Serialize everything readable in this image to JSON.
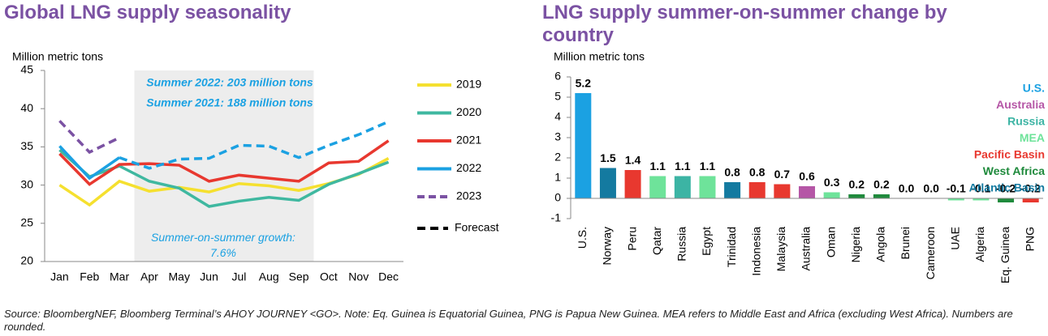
{
  "charts": [
    {
      "type": "line",
      "title": "Global LNG supply seasonality",
      "y_label": "Million metric tons",
      "categories": [
        "Jan",
        "Feb",
        "Mar",
        "Apr",
        "May",
        "Jun",
        "Jul",
        "Aug",
        "Sep",
        "Oct",
        "Nov",
        "Dec"
      ],
      "ylim": [
        20,
        45
      ],
      "yticks": [
        20,
        25,
        30,
        35,
        40,
        45
      ],
      "shade": [
        "Apr",
        "Sep"
      ],
      "annotations": [
        "Summer 2022: 203 million tons",
        "Summer 2021: 188 million tons",
        "Summer-on-summer growth: 7.6%"
      ],
      "forecast_label": "Forecast",
      "series": [
        {
          "name": "2019",
          "color": "#f5e02f",
          "values": [
            30.0,
            27.4,
            30.5,
            29.2,
            29.7,
            29.1,
            30.2,
            29.9,
            29.3,
            30.2,
            31.4,
            33.5
          ]
        },
        {
          "name": "2020",
          "color": "#3fb8a0",
          "values": [
            34.6,
            31.1,
            32.5,
            30.5,
            29.6,
            27.2,
            27.9,
            28.4,
            28.0,
            30.1,
            31.5,
            33.0
          ]
        },
        {
          "name": "2021",
          "color": "#e8382f",
          "values": [
            34.1,
            30.1,
            32.7,
            32.8,
            32.6,
            30.5,
            31.3,
            30.9,
            30.5,
            32.9,
            33.1,
            35.8
          ]
        },
        {
          "name": "2022",
          "color": "#1ba1e2",
          "forecast_from": "Mar",
          "values": [
            35.1,
            30.9,
            33.6,
            32.2,
            33.4,
            33.5,
            35.2,
            35.1,
            33.6,
            35.2,
            36.6,
            38.3
          ]
        },
        {
          "name": "2023",
          "color": "#7b52a3",
          "line_style": "dashed",
          "values": [
            38.4,
            34.3,
            36.2,
            null,
            null,
            null,
            null,
            null,
            null,
            null,
            null,
            null
          ]
        }
      ]
    },
    {
      "type": "bar",
      "title": "LNG supply summer-on-summer change by country",
      "y_label": "Million metric tons",
      "categories": [
        "U.S.",
        "Norway",
        "Peru",
        "Qatar",
        "Russia",
        "Egypt",
        "Trinidad",
        "Indonesia",
        "Malaysia",
        "Australia",
        "Oman",
        "Nigeria",
        "Angola",
        "Brunei",
        "Cameroon",
        "UAE",
        "Algeria",
        "Eq. Guinea",
        "PNG"
      ],
      "values": [
        5.2,
        1.5,
        1.4,
        1.1,
        1.1,
        1.1,
        0.8,
        0.8,
        0.7,
        0.6,
        0.3,
        0.2,
        0.2,
        0.0,
        0.0,
        -0.1,
        -0.1,
        -0.2,
        -0.2
      ],
      "value_labels": [
        "5.2",
        "1.5",
        "1.4",
        "1.1",
        "1.1",
        "1.1",
        "0.8",
        "0.8",
        "0.7",
        "0.6",
        "0.3",
        "0.2",
        "0.2",
        "0.0",
        "0.0",
        "-0.1",
        "-0.1",
        "-0.2",
        "-0.2"
      ],
      "bar_colors": [
        "#1ba1e2",
        "#147aa0",
        "#e8382f",
        "#6ee39a",
        "#3cb4a4",
        "#6ee39a",
        "#147aa0",
        "#e8382f",
        "#e8382f",
        "#b556a6",
        "#6ee39a",
        "#1f8a3c",
        "#1f8a3c",
        "#e8382f",
        "#1f8a3c",
        "#6ee39a",
        "#6ee39a",
        "#1f8a3c",
        "#e8382f"
      ],
      "ylim": [
        -1,
        6
      ],
      "yticks": [
        -1,
        0,
        1,
        2,
        3,
        4,
        5,
        6
      ],
      "legend": [
        {
          "name": "U.S.",
          "color": "#1ba1e2"
        },
        {
          "name": "Australia",
          "color": "#b556a6"
        },
        {
          "name": "Russia",
          "color": "#3cb4a4"
        },
        {
          "name": "MEA",
          "color": "#6ee39a"
        },
        {
          "name": "Pacific Basin",
          "color": "#e8382f"
        },
        {
          "name": "West Africa",
          "color": "#1f8a3c"
        },
        {
          "name": "Atlantic Basin",
          "color": "#147aa0"
        }
      ]
    }
  ],
  "source": "Source: BloombergNEF, Bloomberg Terminal’s AHOY JOURNEY <GO>. Note: Eq. Guinea is Equatorial Guinea, PNG is Papua New Guinea. MEA refers to Middle East and Africa (excluding West Africa). Numbers are rounded."
}
